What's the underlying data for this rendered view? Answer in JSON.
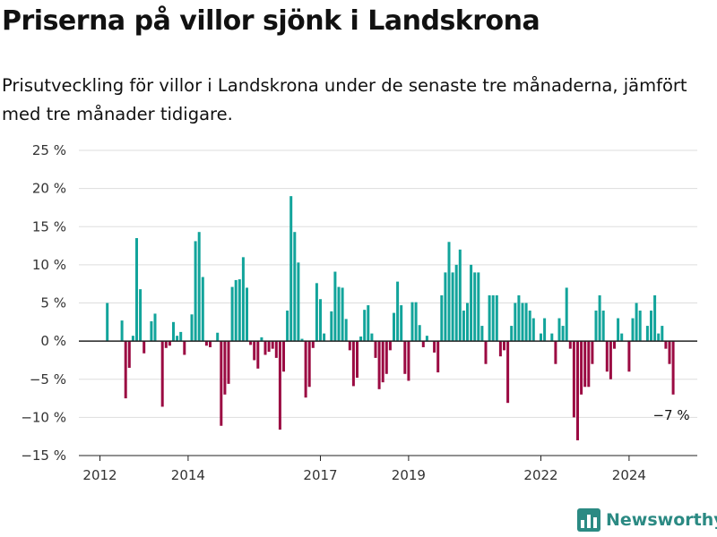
{
  "header": {
    "title": "Priserna på villor sjönk i Landskrona",
    "subtitle": "Prisutveckling för villor i Landskrona under de senaste tre månaderna, jämfört med tre månader tidigare."
  },
  "brand": {
    "name": "Newsworthy",
    "icon": "bar-chart-logo-icon"
  },
  "colors": {
    "positive": "#12a49b",
    "negative": "#9b0a42",
    "grid": "#dddddd",
    "axis": "#222222"
  },
  "chart_data": {
    "type": "bar",
    "title": "",
    "xlabel": "",
    "ylabel": "",
    "grid": true,
    "ylim": [
      -15,
      25
    ],
    "y_ticks": [
      {
        "value": 25,
        "label": "25 %"
      },
      {
        "value": 20,
        "label": "20 %"
      },
      {
        "value": 15,
        "label": "15 %"
      },
      {
        "value": 10,
        "label": "10 %"
      },
      {
        "value": 5,
        "label": "5 %"
      },
      {
        "value": 0,
        "label": "0 %"
      },
      {
        "value": -5,
        "label": "−5 %"
      },
      {
        "value": -10,
        "label": "−10 %"
      },
      {
        "value": -15,
        "label": "−15 %"
      }
    ],
    "x_ticks": [
      {
        "year": 2012,
        "label": "2012"
      },
      {
        "year": 2014,
        "label": "2014"
      },
      {
        "year": 2017,
        "label": "2017"
      },
      {
        "year": 2019,
        "label": "2019"
      },
      {
        "year": 2022,
        "label": "2022"
      },
      {
        "year": 2024,
        "label": "2024"
      }
    ],
    "x_start": "2012-01",
    "annotation": {
      "label": "−7 %",
      "date": "2025-01"
    },
    "series": [
      {
        "values": [
          0,
          0,
          5,
          0,
          0,
          0,
          2.7,
          -7.5,
          -3.5,
          0.7,
          13.5,
          6.8,
          -1.6,
          0,
          2.6,
          3.6,
          0,
          -8.6,
          -0.9,
          -0.6,
          2.5,
          0.7,
          1.2,
          -1.8,
          0,
          3.5,
          13.1,
          14.3,
          8.4,
          -0.6,
          -0.8,
          0,
          1.1,
          -11.1,
          -7,
          -5.6,
          7.1,
          8,
          8.1,
          11,
          7,
          -0.5,
          -2.5,
          -3.6,
          0.5,
          -1.8,
          -1.4,
          -1,
          -2.2,
          -11.6,
          -4,
          4,
          19,
          14.3,
          10.3,
          0.3,
          -7.4,
          -6,
          -0.9,
          7.6,
          5.5,
          1,
          0,
          3.9,
          9.1,
          7.1,
          7,
          2.9,
          -1.2,
          -5.9,
          -4.8,
          0.6,
          4.1,
          4.7,
          1,
          -2.2,
          -6.3,
          -5.4,
          -4.3,
          -1.2,
          3.7,
          7.8,
          4.7,
          -4.3,
          -5.2,
          5.1,
          5.1,
          2.1,
          -0.8,
          0.7,
          0,
          -1.5,
          -4.1,
          6,
          9,
          13,
          9,
          10,
          12,
          4,
          5,
          10,
          9,
          9,
          2,
          -3,
          6,
          6,
          6,
          -2,
          -1.2,
          -8.1,
          2,
          5,
          6,
          5,
          5,
          4,
          3,
          0,
          1,
          3,
          0,
          1,
          -3,
          3,
          2,
          7,
          -1,
          -10,
          -13,
          -7,
          -6,
          -6,
          -3,
          4,
          6,
          4,
          -4,
          -5,
          -1,
          3,
          1,
          0,
          -4,
          3,
          5,
          4,
          0,
          2,
          4,
          6,
          1,
          2,
          -1,
          -3,
          -7
        ]
      }
    ]
  }
}
